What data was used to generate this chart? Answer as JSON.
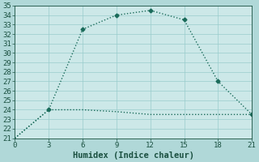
{
  "title": "",
  "xlabel": "Humidex (Indice chaleur)",
  "x_values": [
    0,
    3,
    6,
    9,
    12,
    15,
    18,
    21
  ],
  "line1_y": [
    21,
    24,
    32.5,
    34,
    34.5,
    33.5,
    27,
    23.5
  ],
  "line2_y": [
    21,
    24,
    24,
    23.8,
    23.5,
    23.5,
    23.5,
    23.5
  ],
  "line_color": "#1a6b5a",
  "bg_color": "#b0d8d8",
  "plot_bg_color": "#cce8e8",
  "grid_color": "#99cccc",
  "ylim_min": 21,
  "ylim_max": 35,
  "xlim_min": 0,
  "xlim_max": 21,
  "ytick_step": 1,
  "xtick_step": 3,
  "marker": "D",
  "marker_size": 2.5,
  "line_width": 1.0,
  "font_color": "#1a5040",
  "xlabel_fontsize": 7.5,
  "tick_fontsize": 6.5
}
